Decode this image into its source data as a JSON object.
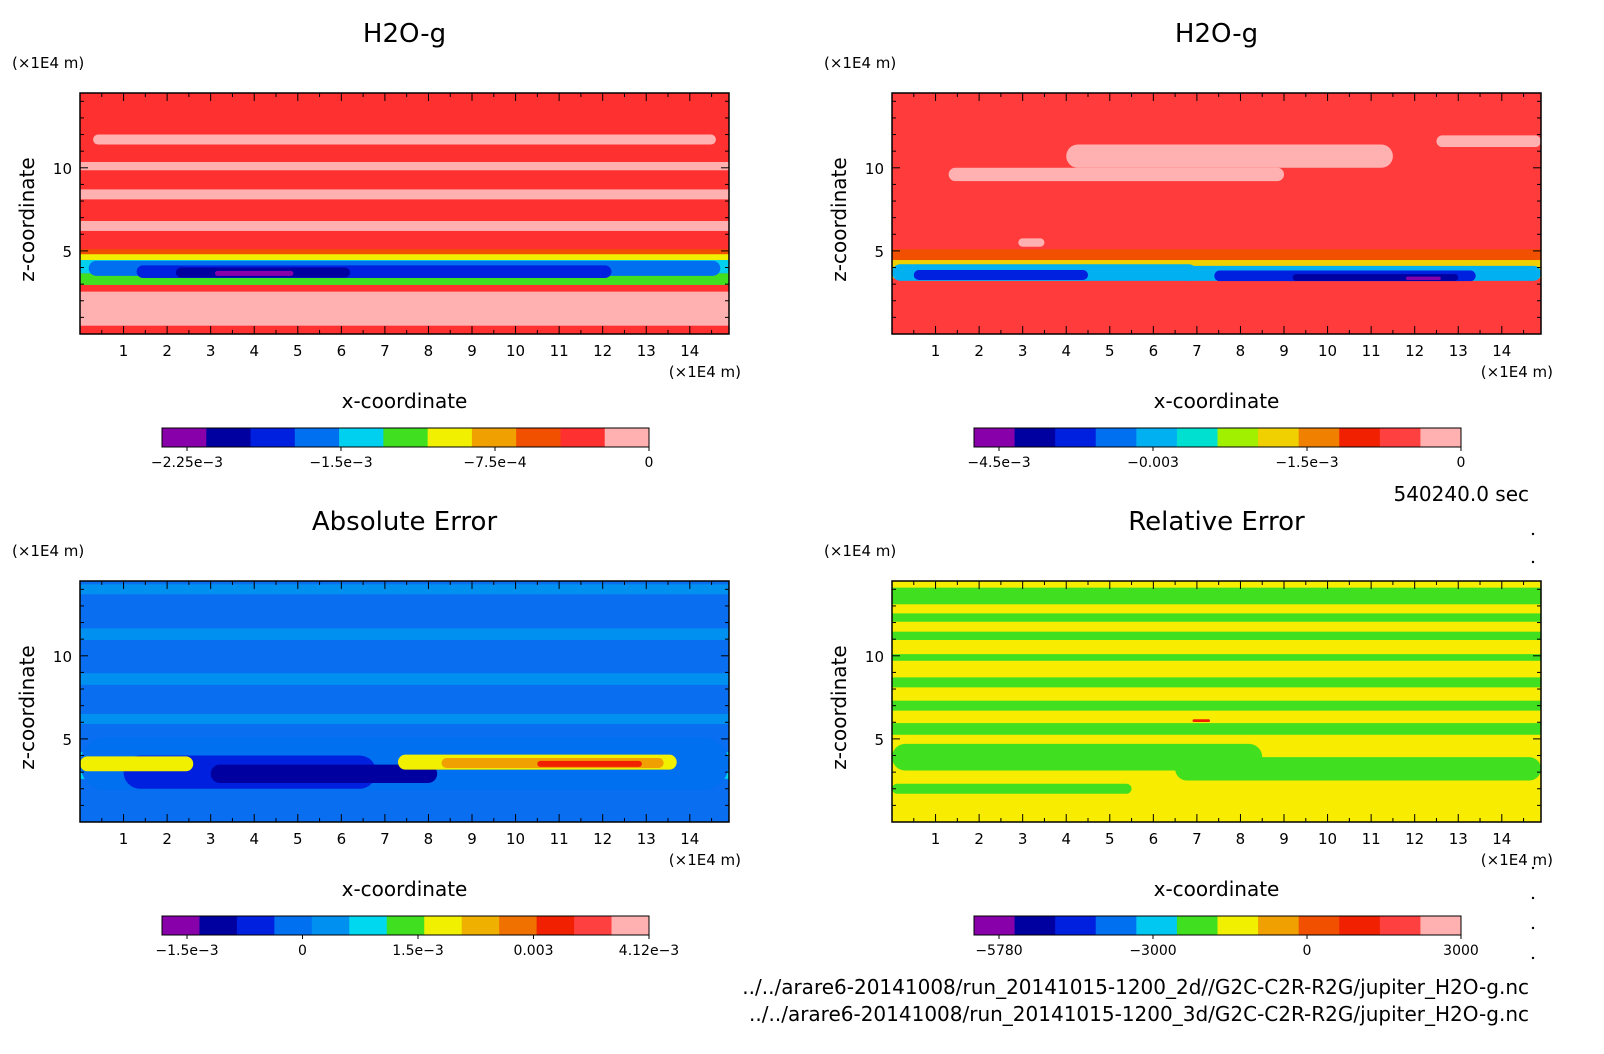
{
  "time_label": "540240.0 sec",
  "footer": {
    "file_2d": "../../arare6-20141008/run_20141015-1200_2d//G2C-C2R-R2G/jupiter_H2O-g.nc",
    "file_3d": "../../arare6-20141008/run_20141015-1200_3d/G2C-C2R-R2G/jupiter_H2O-g.nc"
  },
  "chart_data": [
    {
      "type": "heatmap",
      "title": "H2O-g",
      "xlabel": "x-coordinate",
      "ylabel": "z-coordinate",
      "x_unit": "(×1E4 m)",
      "y_unit": "(×1E4 m)",
      "xlim": [
        0,
        14.9
      ],
      "ylim": [
        0,
        14.5
      ],
      "x_ticks": [
        "1",
        "2",
        "3",
        "4",
        "5",
        "6",
        "7",
        "8",
        "9",
        "10",
        "11",
        "12",
        "13",
        "14"
      ],
      "y_ticks": [
        "5",
        "10"
      ],
      "background": "#ff3030",
      "colorbar": {
        "colors": [
          "#8800aa",
          "#0000a0",
          "#0020e0",
          "#0070f0",
          "#00d0f0",
          "#40e020",
          "#f0f000",
          "#f0a000",
          "#f05000",
          "#ff3030",
          "#ffb0b0"
        ],
        "ticks": [
          "−2.25e−3",
          "−1.5e−3",
          "−7.5e−4",
          "0"
        ]
      }
    },
    {
      "type": "heatmap",
      "title": "H2O-g",
      "xlabel": "x-coordinate",
      "ylabel": "z-coordinate",
      "x_unit": "(×1E4 m)",
      "y_unit": "(×1E4 m)",
      "xlim": [
        0,
        14.9
      ],
      "ylim": [
        0,
        14.5
      ],
      "x_ticks": [
        "1",
        "2",
        "3",
        "4",
        "5",
        "6",
        "7",
        "8",
        "9",
        "10",
        "11",
        "12",
        "13",
        "14"
      ],
      "y_ticks": [
        "5",
        "10"
      ],
      "background": "#ff3b3b",
      "colorbar": {
        "colors": [
          "#8800aa",
          "#0000a0",
          "#0020e0",
          "#0070f0",
          "#00b0f0",
          "#00e0d0",
          "#a0f000",
          "#f0d000",
          "#f08000",
          "#f02000",
          "#ff4040",
          "#ffb0b0"
        ],
        "ticks": [
          "−4.5e−3",
          "−0.003",
          "−1.5e−3",
          "0"
        ]
      }
    },
    {
      "type": "heatmap",
      "title": "Absolute Error",
      "xlabel": "x-coordinate",
      "ylabel": "z-coordinate",
      "x_unit": "(×1E4 m)",
      "y_unit": "(×1E4 m)",
      "xlim": [
        0,
        14.9
      ],
      "ylim": [
        0,
        14.5
      ],
      "x_ticks": [
        "1",
        "2",
        "3",
        "4",
        "5",
        "6",
        "7",
        "8",
        "9",
        "10",
        "11",
        "12",
        "13",
        "14"
      ],
      "y_ticks": [
        "5",
        "10"
      ],
      "background": "#0a6ef0",
      "colorbar": {
        "colors": [
          "#8800aa",
          "#0000a0",
          "#0020e0",
          "#0070f0",
          "#0090f0",
          "#00d8f0",
          "#40e020",
          "#f0f000",
          "#f0b000",
          "#f07000",
          "#f02000",
          "#ff4040",
          "#ffb0b0"
        ],
        "ticks": [
          "−1.5e−3",
          "0",
          "1.5e−3",
          "0.003",
          "4.12e−3"
        ]
      }
    },
    {
      "type": "heatmap",
      "title": "Relative Error",
      "xlabel": "x-coordinate",
      "ylabel": "z-coordinate",
      "x_unit": "(×1E4 m)",
      "y_unit": "(×1E4 m)",
      "xlim": [
        0,
        14.9
      ],
      "ylim": [
        0,
        14.5
      ],
      "x_ticks": [
        "1",
        "2",
        "3",
        "4",
        "5",
        "6",
        "7",
        "8",
        "9",
        "10",
        "11",
        "12",
        "13",
        "14"
      ],
      "y_ticks": [
        "5",
        "10"
      ],
      "background": "#f8ec00",
      "colorbar": {
        "colors": [
          "#8800aa",
          "#0000a0",
          "#0020e0",
          "#0070f0",
          "#00c8f0",
          "#40e020",
          "#f0f000",
          "#f0a000",
          "#f05000",
          "#f02000",
          "#ff4040",
          "#ffb0b0"
        ],
        "ticks": [
          "−5780",
          "−3000",
          "0",
          "3000"
        ]
      }
    }
  ]
}
